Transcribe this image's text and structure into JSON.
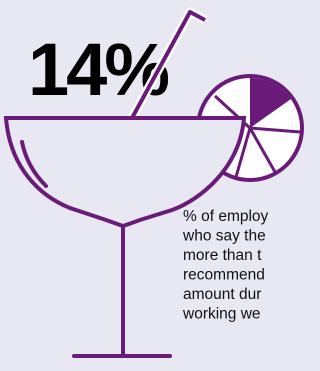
{
  "headline": "14%",
  "caption": [
    "% of employ",
    "who say the",
    "more than t",
    "recommend",
    "amount dur",
    "working we"
  ]
}
